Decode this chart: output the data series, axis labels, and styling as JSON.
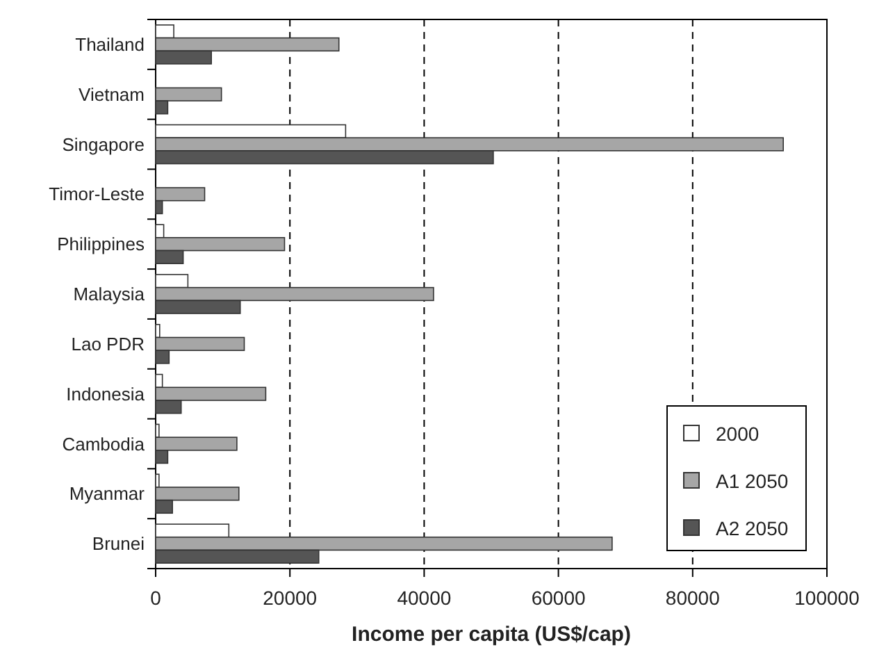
{
  "chart_data": {
    "type": "bar",
    "orientation": "horizontal",
    "xlabel": "Income per capita (US$/cap)",
    "categories": [
      "Thailand",
      "Vietnam",
      "Singapore",
      "Timor-Leste",
      "Philippines",
      "Malaysia",
      "Lao PDR",
      "Indonesia",
      "Cambodia",
      "Myanmar",
      "Brunei"
    ],
    "series": [
      {
        "name": "2000",
        "color": "#ffffff",
        "values": [
          2700,
          null,
          28300,
          null,
          1200,
          4800,
          600,
          1000,
          500,
          500,
          10900
        ]
      },
      {
        "name": "A1 2050",
        "color": "#a6a6a6",
        "values": [
          27300,
          9800,
          93500,
          7300,
          19200,
          41400,
          13200,
          16400,
          12100,
          12400,
          68000
        ]
      },
      {
        "name": "A2 2050",
        "color": "#555555",
        "values": [
          8300,
          1800,
          50300,
          1000,
          4100,
          12600,
          2000,
          3800,
          1800,
          2500,
          24300
        ]
      }
    ],
    "xlim": [
      0,
      100000
    ],
    "xticks": [
      0,
      20000,
      40000,
      60000,
      80000,
      100000
    ],
    "grid": "x",
    "legend": "bottom right"
  }
}
